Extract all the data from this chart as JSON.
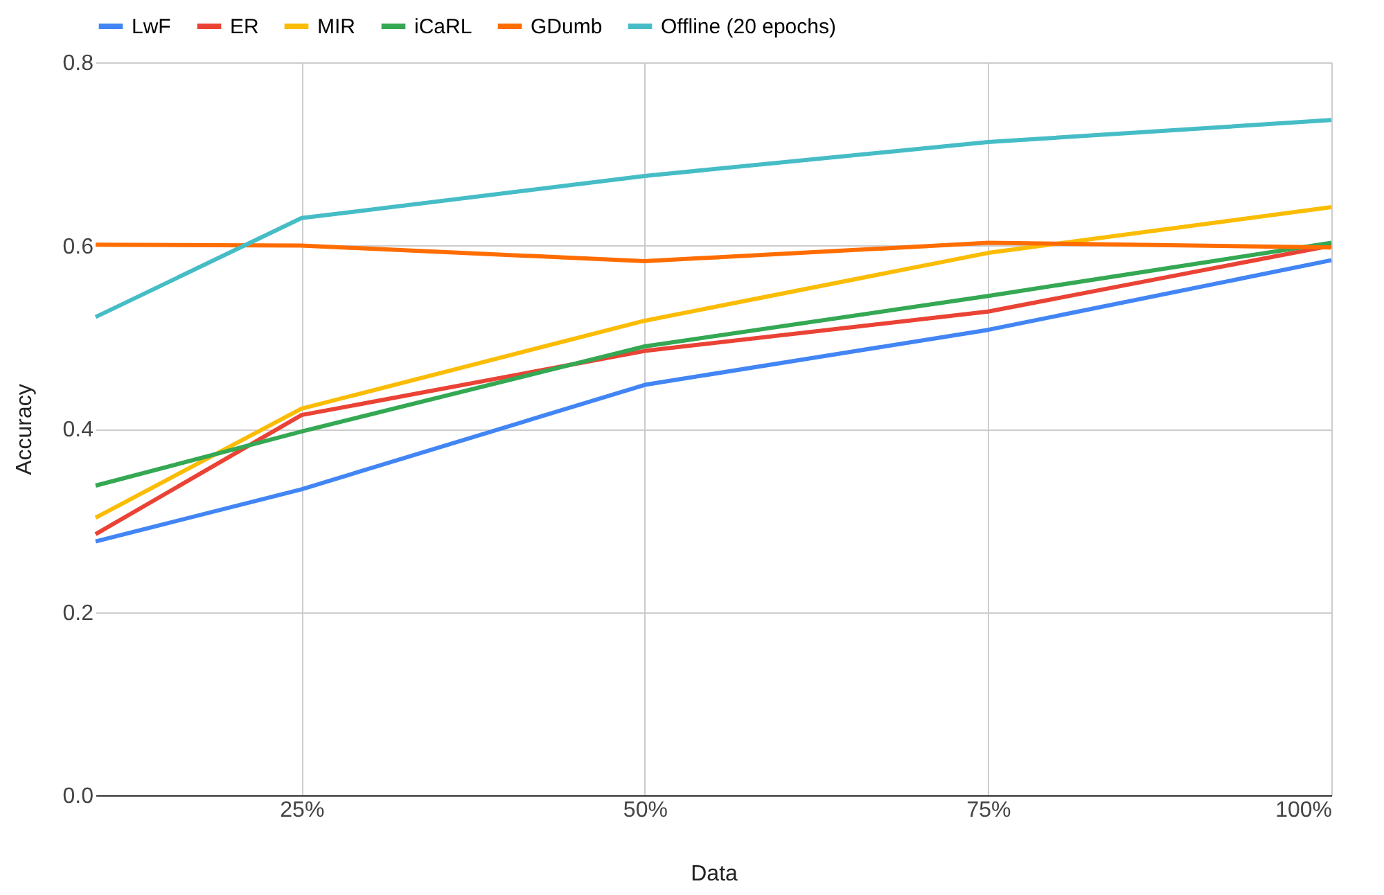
{
  "chart_data": {
    "type": "line",
    "xlabel": "Data",
    "ylabel": "Accuracy",
    "x": [
      10,
      25,
      50,
      75,
      100
    ],
    "xlim": [
      10,
      100
    ],
    "xticks": [
      {
        "value": 25,
        "label": "25%"
      },
      {
        "value": 50,
        "label": "50%"
      },
      {
        "value": 75,
        "label": "75%"
      },
      {
        "value": 100,
        "label": "100%"
      }
    ],
    "ylim": [
      0,
      0.8
    ],
    "yticks": [
      {
        "value": 0,
        "label": "0.0"
      },
      {
        "value": 0.2,
        "label": "0.2"
      },
      {
        "value": 0.4,
        "label": "0.4"
      },
      {
        "value": 0.6,
        "label": "0.6"
      },
      {
        "value": 0.8,
        "label": "0.8"
      }
    ],
    "grid": true,
    "legend": "top",
    "marker": "none",
    "line_style": "solid",
    "series": [
      {
        "name": "LwF",
        "color": "#4285f4",
        "values": [
          0.277,
          0.334,
          0.448,
          0.508,
          0.584
        ]
      },
      {
        "name": "ER",
        "color": "#ea4335",
        "values": [
          0.285,
          0.415,
          0.485,
          0.528,
          0.6
        ]
      },
      {
        "name": "MIR",
        "color": "#fbbc04",
        "values": [
          0.303,
          0.422,
          0.518,
          0.592,
          0.642
        ]
      },
      {
        "name": "iCaRL",
        "color": "#34a853",
        "values": [
          0.338,
          0.397,
          0.49,
          0.545,
          0.603
        ]
      },
      {
        "name": "GDumb",
        "color": "#ff6d01",
        "values": [
          0.601,
          0.6,
          0.583,
          0.603,
          0.598
        ]
      },
      {
        "name": "Offline (20 epochs)",
        "color": "#46bdc6",
        "values": [
          0.522,
          0.63,
          0.676,
          0.713,
          0.737
        ]
      }
    ]
  }
}
